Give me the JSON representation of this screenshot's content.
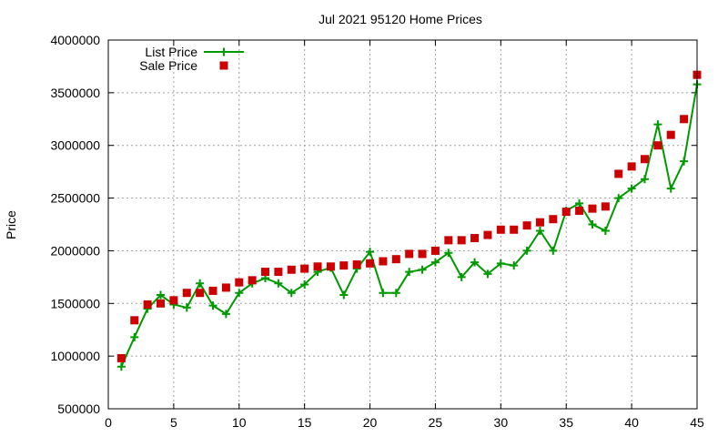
{
  "chart_data": {
    "type": "line",
    "title": "Jul 2021 95120 Home Prices",
    "xlabel": "",
    "ylabel": "Price",
    "xlim": [
      0,
      45
    ],
    "ylim": [
      500000,
      4000000
    ],
    "xticks": [
      0,
      5,
      10,
      15,
      20,
      25,
      30,
      35,
      40,
      45
    ],
    "yticks": [
      500000,
      1000000,
      1500000,
      2000000,
      2500000,
      3000000,
      3500000,
      4000000
    ],
    "grid": true,
    "legend_position": "top-left",
    "series": [
      {
        "name": "List Price",
        "style": "line-points",
        "marker": "plus",
        "color": "#009900",
        "x": [
          1,
          2,
          3,
          4,
          5,
          6,
          7,
          8,
          9,
          10,
          11,
          12,
          13,
          14,
          15,
          16,
          17,
          18,
          19,
          20,
          21,
          22,
          23,
          24,
          25,
          26,
          27,
          28,
          29,
          30,
          31,
          32,
          33,
          34,
          35,
          36,
          37,
          38,
          39,
          40,
          41,
          42,
          43,
          44,
          45
        ],
        "y": [
          900000,
          1180000,
          1450000,
          1580000,
          1490000,
          1460000,
          1690000,
          1480000,
          1400000,
          1600000,
          1690000,
          1740000,
          1690000,
          1600000,
          1680000,
          1800000,
          1840000,
          1580000,
          1830000,
          1990000,
          1600000,
          1600000,
          1800000,
          1820000,
          1890000,
          1980000,
          1750000,
          1890000,
          1780000,
          1880000,
          1860000,
          2000000,
          2190000,
          2000000,
          2380000,
          2450000,
          2250000,
          2190000,
          2500000,
          2590000,
          2680000,
          3200000,
          2590000,
          2850000,
          3580000
        ]
      },
      {
        "name": "Sale Price",
        "style": "points",
        "marker": "square",
        "color": "#cc0000",
        "x": [
          1,
          2,
          3,
          4,
          5,
          6,
          7,
          8,
          9,
          10,
          11,
          12,
          13,
          14,
          15,
          16,
          17,
          18,
          19,
          20,
          21,
          22,
          23,
          24,
          25,
          26,
          27,
          28,
          29,
          30,
          31,
          32,
          33,
          34,
          35,
          36,
          37,
          38,
          39,
          40,
          41,
          42,
          43,
          44,
          45
        ],
        "y": [
          980000,
          1340000,
          1490000,
          1500000,
          1530000,
          1600000,
          1600000,
          1620000,
          1650000,
          1700000,
          1720000,
          1800000,
          1800000,
          1820000,
          1830000,
          1850000,
          1850000,
          1860000,
          1870000,
          1880000,
          1900000,
          1920000,
          1970000,
          1970000,
          2000000,
          2100000,
          2100000,
          2120000,
          2150000,
          2200000,
          2200000,
          2240000,
          2270000,
          2300000,
          2370000,
          2380000,
          2400000,
          2420000,
          2730000,
          2800000,
          2870000,
          3000000,
          3100000,
          3250000,
          3670000
        ]
      }
    ]
  }
}
